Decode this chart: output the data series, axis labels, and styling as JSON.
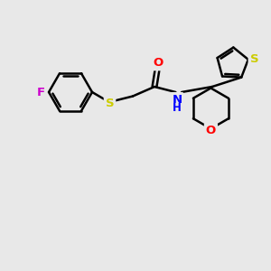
{
  "background_color": "#e8e8e8",
  "atom_colors": {
    "F": "#cc00cc",
    "S": "#cccc00",
    "O": "#ff0000",
    "N": "#0000ff",
    "C": "#000000",
    "H": "#000000"
  },
  "bond_color": "#000000",
  "bond_width": 1.8,
  "figsize": [
    3.0,
    3.0
  ],
  "dpi": 100
}
